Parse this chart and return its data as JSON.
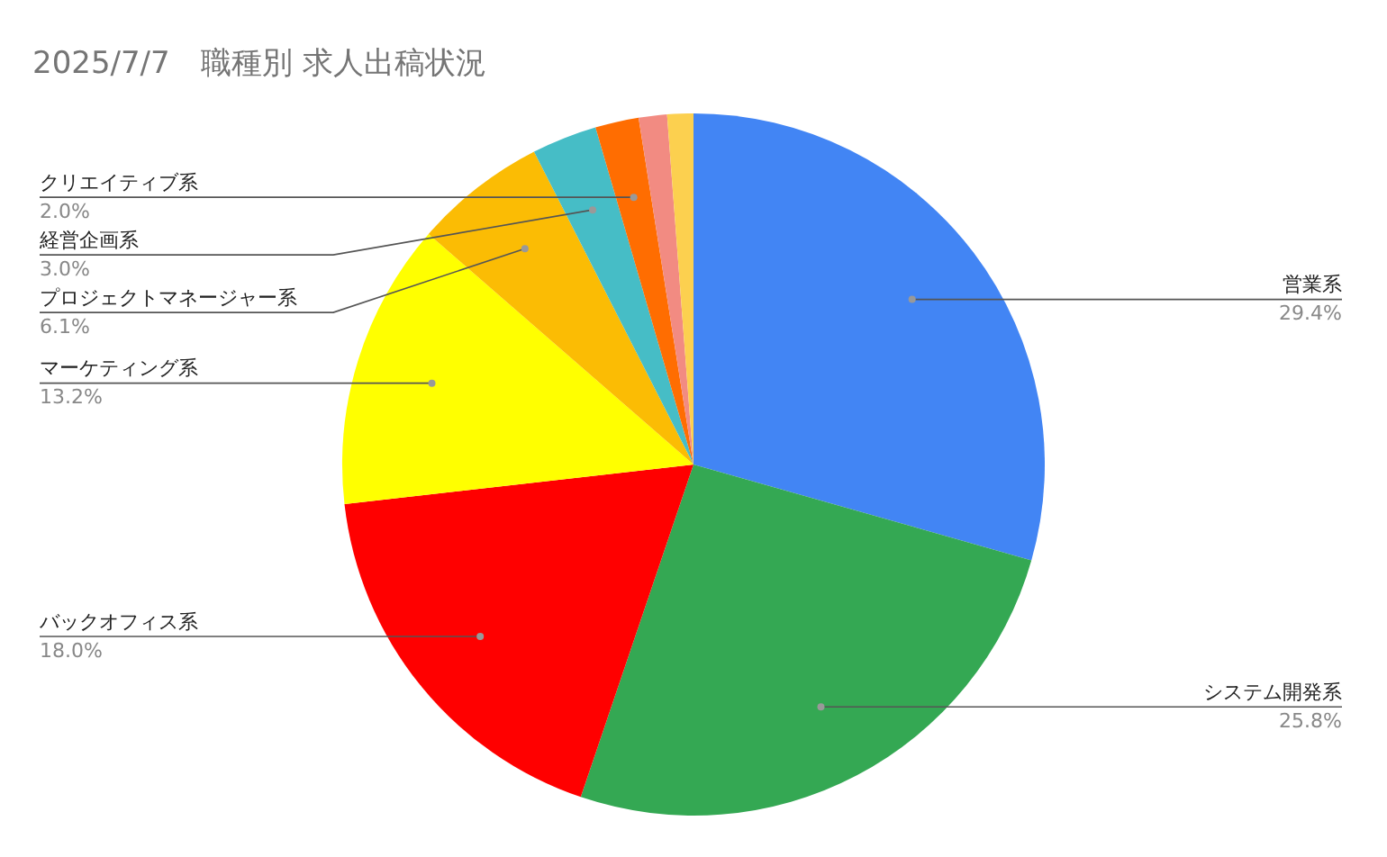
{
  "chart_data": {
    "type": "pie",
    "title": "2025/7/7　職種別 求人出稿状況",
    "categories": [
      "営業系",
      "システム開発系",
      "バックオフィス系",
      "マーケティング系",
      "プロジェクトマネージャー系",
      "経営企画系",
      "クリエイティブ系",
      null,
      null
    ],
    "values": [
      29.4,
      25.8,
      18.0,
      13.2,
      6.1,
      3.0,
      2.0,
      1.3,
      1.2
    ],
    "value_labels": [
      "29.4%",
      "25.8%",
      "18.0%",
      "13.2%",
      "6.1%",
      "3.0%",
      "2.0%",
      null,
      null
    ],
    "colors": [
      "#4285f4",
      "#34a853",
      "#ff0000",
      "#ffff00",
      "#fbbc04",
      "#46bdc6",
      "#ff6d01",
      "#f28b82",
      "#fcd04f"
    ],
    "legend": false
  }
}
